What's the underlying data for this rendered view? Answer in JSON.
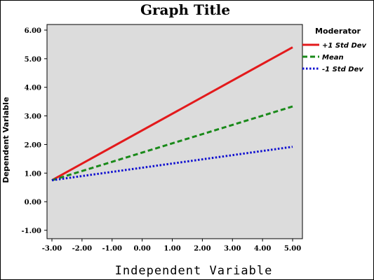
{
  "chart_data": {
    "type": "line",
    "title": "Graph Title",
    "xlabel": "Independent Variable",
    "ylabel": "Dependent Variable",
    "xlim": [
      -3.0,
      5.0
    ],
    "ylim": [
      -1.0,
      6.0
    ],
    "x_ticks": [
      "-3.00",
      "-2.00",
      "-1.00",
      "0.00",
      "1.00",
      "2.00",
      "3.00",
      "4.00",
      "5.00"
    ],
    "y_ticks": [
      "6.00",
      "5.00",
      "4.00",
      "3.00",
      "2.00",
      "1.00",
      "0.00",
      "-1.00"
    ],
    "grid": false,
    "background": "#dcdcdc",
    "legend": {
      "title": "Moderator",
      "placement": "right-top"
    },
    "series": [
      {
        "name": "+1 Std Dev",
        "color": "#e31a1c",
        "style": "solid",
        "x": [
          -3.0,
          5.0
        ],
        "y": [
          0.75,
          5.4
        ]
      },
      {
        "name": "Mean",
        "color": "#1a8a1a",
        "style": "dashed",
        "x": [
          -3.0,
          5.0
        ],
        "y": [
          0.75,
          3.33
        ]
      },
      {
        "name": "-1 Std Dev",
        "color": "#1010d0",
        "style": "dotted",
        "x": [
          -3.0,
          5.0
        ],
        "y": [
          0.75,
          1.92
        ]
      }
    ]
  }
}
